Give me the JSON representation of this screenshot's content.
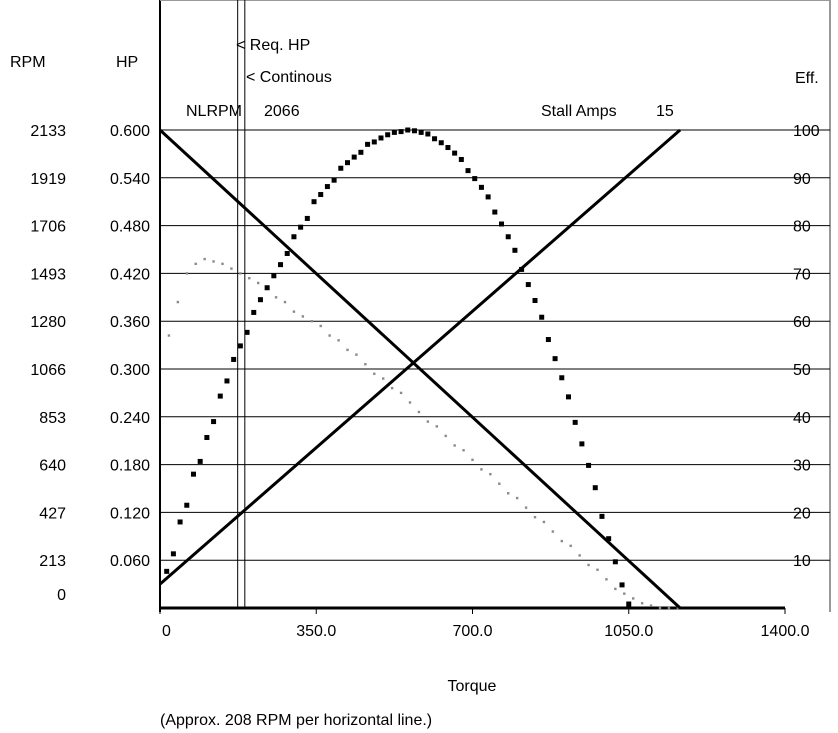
{
  "chart_data": {
    "type": "line",
    "title": "",
    "xlabel": "Torque",
    "ylabel": "",
    "x_ticks": [
      "0",
      "350.0",
      "700.0",
      "1050.0",
      "1400.0"
    ],
    "xlim": [
      0,
      1400
    ],
    "axes_headers": {
      "rpm": "RPM",
      "hp": "HP",
      "eff": "Eff."
    },
    "rpm_ticks": [
      "2133",
      "1919",
      "1706",
      "1493",
      "1280",
      "1066",
      "853",
      "640",
      "427",
      "213",
      "0"
    ],
    "hp_ticks": [
      "0.600",
      "0.540",
      "0.480",
      "0.420",
      "0.360",
      "0.300",
      "0.240",
      "0.180",
      "0.120",
      "0.060"
    ],
    "eff_ticks": [
      "100",
      "90",
      "80",
      "70",
      "60",
      "50",
      "40",
      "30",
      "20",
      "10"
    ],
    "hp_range": [
      0,
      0.6
    ],
    "eff_range": [
      0,
      100
    ],
    "annotations": {
      "req_hp": "< Req. HP",
      "continuous": "< Continous",
      "nlrpm_label": "NLRPM",
      "nlrpm_value": "2066",
      "stall_label": "Stall Amps",
      "stall_value": "15",
      "footnote": "(Approx. 208 RPM per horizontal line.)"
    },
    "vertical_markers": {
      "req_hp_torque": 174,
      "continuous_torque": 190
    },
    "speed_line": {
      "name": "Speed",
      "x": [
        0,
        1165
      ],
      "y": [
        0.6,
        0.0
      ]
    },
    "current_line": {
      "name": "Current",
      "x": [
        0,
        1165
      ],
      "y": [
        0.03,
        0.6
      ]
    },
    "power_points": {
      "name": "Power",
      "x": [
        15,
        30,
        45,
        60,
        75,
        90,
        105,
        120,
        135,
        150,
        165,
        180,
        195,
        210,
        225,
        240,
        255,
        270,
        285,
        300,
        315,
        330,
        345,
        360,
        375,
        390,
        405,
        420,
        435,
        450,
        465,
        480,
        495,
        510,
        525,
        540,
        555,
        570,
        585,
        600,
        615,
        630,
        645,
        660,
        675,
        690,
        705,
        720,
        735,
        750,
        765,
        780,
        795,
        810,
        825,
        840,
        855,
        870,
        885,
        900,
        915,
        930,
        945,
        960,
        975,
        990,
        1005,
        1020,
        1035,
        1050,
        1065,
        1080,
        1095,
        1110,
        1125,
        1140,
        1155
      ],
      "y": [
        0.046,
        0.068,
        0.108,
        0.129,
        0.168,
        0.184,
        0.214,
        0.234,
        0.266,
        0.285,
        0.312,
        0.329,
        0.346,
        0.371,
        0.387,
        0.402,
        0.417,
        0.431,
        0.445,
        0.466,
        0.478,
        0.489,
        0.51,
        0.519,
        0.529,
        0.537,
        0.552,
        0.559,
        0.566,
        0.572,
        0.582,
        0.585,
        0.59,
        0.594,
        0.597,
        0.598,
        0.6,
        0.599,
        0.597,
        0.595,
        0.589,
        0.584,
        0.578,
        0.571,
        0.563,
        0.549,
        0.539,
        0.528,
        0.516,
        0.497,
        0.482,
        0.466,
        0.449,
        0.425,
        0.406,
        0.386,
        0.365,
        0.337,
        0.313,
        0.289,
        0.265,
        0.233,
        0.206,
        0.179,
        0.151,
        0.115,
        0.087,
        0.058,
        0.029,
        0.005,
        0.0,
        0.0,
        0.0,
        0.0,
        0.0,
        0.0,
        0.0
      ],
      "note": "Power curve sampled every 15 torque units"
    },
    "efficiency_points": {
      "name": "Efficiency",
      "x": [
        20,
        40,
        60,
        80,
        100,
        120,
        140,
        160,
        180,
        200,
        220,
        240,
        260,
        280,
        300,
        320,
        340,
        360,
        380,
        400,
        420,
        440,
        460,
        480,
        500,
        520,
        540,
        560,
        580,
        600,
        620,
        640,
        660,
        680,
        700,
        720,
        740,
        760,
        780,
        800,
        820,
        840,
        860,
        880,
        900,
        920,
        940,
        960,
        980,
        1000,
        1020,
        1040,
        1060,
        1080,
        1100,
        1120,
        1140,
        1160
      ],
      "y": [
        57,
        64,
        70,
        72,
        73,
        72.5,
        72,
        71,
        70,
        69,
        68,
        67,
        65,
        64,
        62,
        61,
        60,
        59,
        57,
        56,
        54,
        53,
        51,
        49,
        48,
        46,
        45,
        43,
        41,
        39,
        38,
        36,
        34,
        33,
        31,
        29,
        28,
        26,
        24,
        23,
        21,
        19,
        18,
        16,
        14,
        13,
        11,
        9,
        8,
        6,
        4,
        3,
        2,
        1,
        0.5,
        0,
        0,
        0
      ]
    }
  }
}
